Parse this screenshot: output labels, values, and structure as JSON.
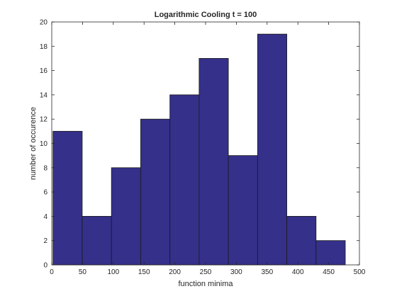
{
  "chart_data": {
    "type": "bar",
    "title": "Logarithmic Cooling t = 100",
    "xlabel": "function minima",
    "ylabel": "number of occurence",
    "xlim": [
      0,
      500
    ],
    "ylim": [
      0,
      20
    ],
    "xticks": [
      0,
      50,
      100,
      150,
      200,
      250,
      300,
      350,
      400,
      450,
      500
    ],
    "yticks": [
      0,
      2,
      4,
      6,
      8,
      10,
      12,
      14,
      16,
      18,
      20
    ],
    "bin_edges": [
      2,
      49.5,
      97,
      144.5,
      192,
      239.5,
      287,
      334.5,
      382,
      429.5,
      477
    ],
    "values": [
      11,
      4,
      8,
      12,
      14,
      17,
      9,
      19,
      4,
      2
    ],
    "bar_color": "#35308A",
    "edge_color": "#1a1a1a",
    "grid": false
  }
}
